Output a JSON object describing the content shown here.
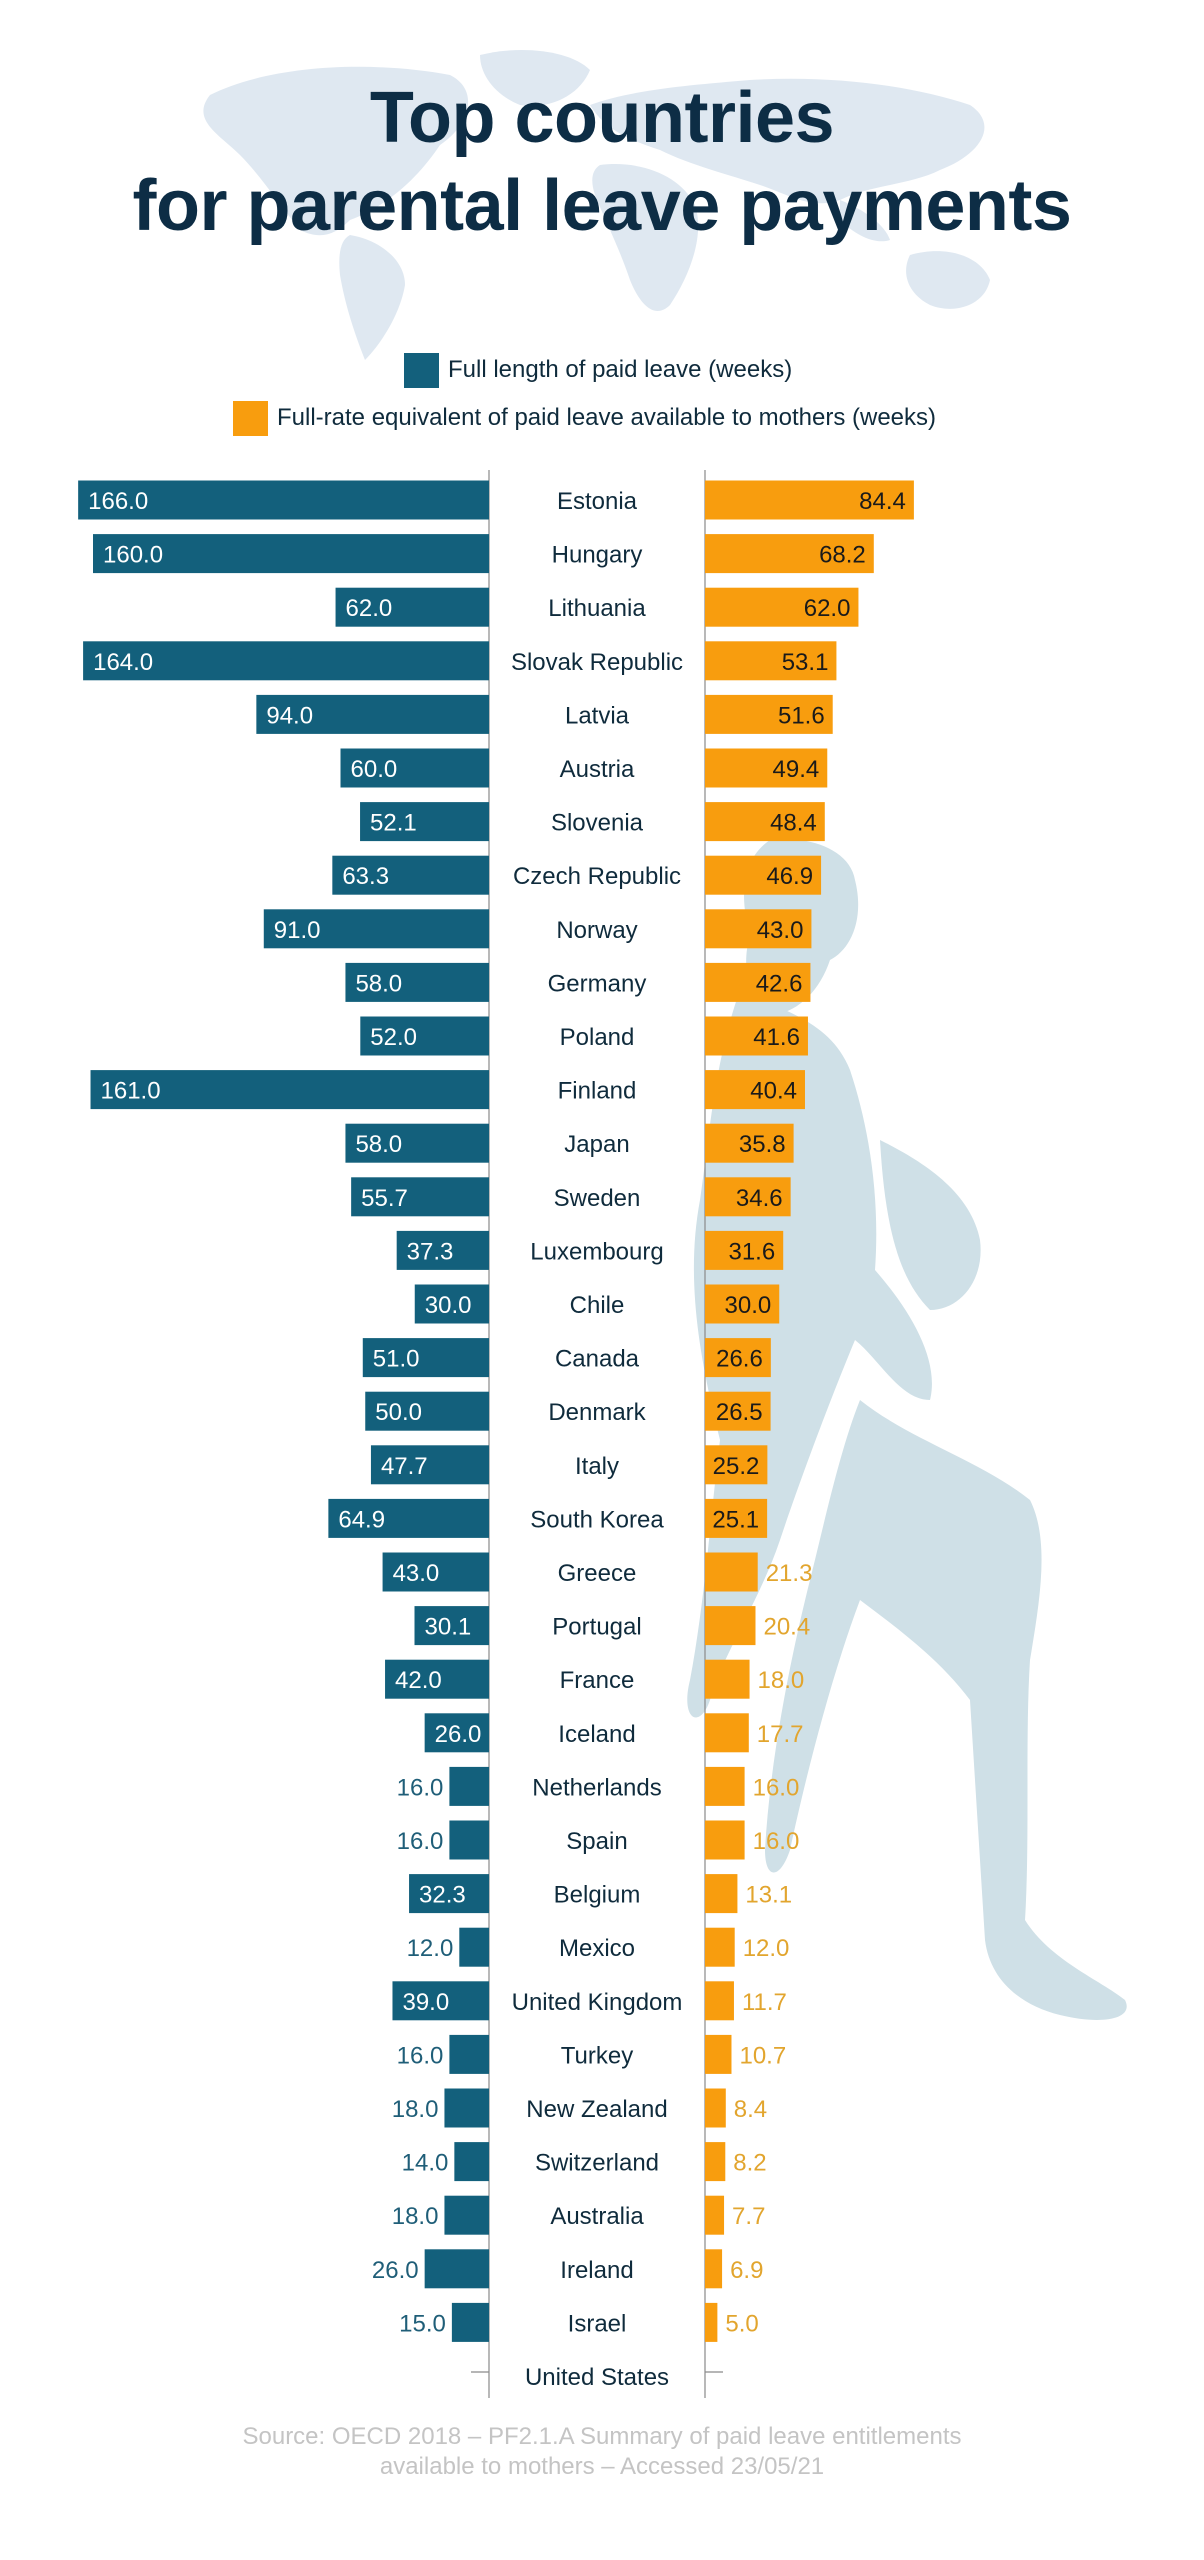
{
  "header": {
    "title_line1": "Top countries",
    "title_line2": "for parental leave payments"
  },
  "legend": [
    {
      "label": "Full length of paid leave (weeks)",
      "color": "#13607c"
    },
    {
      "label": "Full-rate equivalent of paid leave available to mothers (weeks)",
      "color": "#f89d0e"
    }
  ],
  "colors": {
    "blue": "#13607c",
    "orange": "#f89d0e",
    "label_dark": "#0f2b3c",
    "blue_text_outside": "#1f5e78",
    "orange_text_outside": "#e2a52e",
    "background_art": "#cfe0e7"
  },
  "chart_data": {
    "type": "bar",
    "orientation": "horizontal-butterfly",
    "title": "Top countries for parental leave payments",
    "xlabel": "weeks",
    "ylabel": "",
    "xlim": [
      0,
      166
    ],
    "grid": false,
    "legend_position": "top-center",
    "categories": [
      "Estonia",
      "Hungary",
      "Lithuania",
      "Slovak Republic",
      "Latvia",
      "Austria",
      "Slovenia",
      "Czech Republic",
      "Norway",
      "Germany",
      "Poland",
      "Finland",
      "Japan",
      "Sweden",
      "Luxembourg",
      "Chile",
      "Canada",
      "Denmark",
      "Italy",
      "South Korea",
      "Greece",
      "Portugal",
      "France",
      "Iceland",
      "Netherlands",
      "Spain",
      "Belgium",
      "Mexico",
      "United Kingdom",
      "Turkey",
      "New Zealand",
      "Switzerland",
      "Australia",
      "Ireland",
      "Israel",
      "United States"
    ],
    "series": [
      {
        "name": "Full length of paid leave (weeks)",
        "side": "left",
        "values": [
          166.0,
          160.0,
          62.0,
          164.0,
          94.0,
          60.0,
          52.1,
          63.3,
          91.0,
          58.0,
          52.0,
          161.0,
          58.0,
          55.7,
          37.3,
          30.0,
          51.0,
          50.0,
          47.7,
          64.9,
          43.0,
          30.1,
          42.0,
          26.0,
          16.0,
          16.0,
          32.3,
          12.0,
          39.0,
          16.0,
          18.0,
          14.0,
          18.0,
          26.0,
          15.0,
          0
        ],
        "labels": [
          "166.0",
          "160.0",
          "62.0",
          "164.0",
          "94.0",
          "60.0",
          "52.1",
          "63.3",
          "91.0",
          "58.0",
          "52.0",
          "161.0",
          "58.0",
          "55.7",
          "37.3",
          "30.0",
          "51.0",
          "50.0",
          "47.7",
          "64.9",
          "43.0",
          "30.1",
          "42.0",
          "26.0",
          "16.0",
          "16.0",
          "32.3",
          "12.0",
          "39.0",
          "16.0",
          "18.0",
          "14.0",
          "18.0",
          "26.0",
          "15.0",
          ""
        ],
        "label_inside": [
          true,
          true,
          true,
          true,
          true,
          true,
          true,
          true,
          true,
          true,
          true,
          true,
          true,
          true,
          true,
          true,
          true,
          true,
          true,
          true,
          true,
          true,
          true,
          true,
          false,
          false,
          true,
          false,
          true,
          false,
          false,
          false,
          false,
          false,
          false,
          false
        ]
      },
      {
        "name": "Full-rate equivalent of paid leave available to mothers (weeks)",
        "side": "right",
        "values": [
          84.4,
          68.2,
          62.0,
          53.1,
          51.6,
          49.4,
          48.4,
          46.9,
          43.0,
          42.6,
          41.6,
          40.4,
          35.8,
          34.6,
          31.6,
          30.0,
          26.6,
          26.5,
          25.2,
          25.1,
          21.3,
          20.4,
          18.0,
          17.7,
          16.0,
          16.0,
          13.1,
          12.0,
          11.7,
          10.7,
          8.4,
          8.2,
          7.7,
          6.9,
          5.0,
          0
        ],
        "labels": [
          "84.4",
          "68.2",
          "62.0",
          "53.1",
          "51.6",
          "49.4",
          "48.4",
          "46.9",
          "43.0",
          "42.6",
          "41.6",
          "40.4",
          "35.8",
          "34.6",
          "31.6",
          "30.0",
          "26.6",
          "26.5",
          "25.2",
          "25.1",
          "21.3",
          "20.4",
          "18.0",
          "17.7",
          "16.0",
          "16.0",
          "13.1",
          "12.0",
          "11.7",
          "10.7",
          "8.4",
          "8.2",
          "7.7",
          "6.9",
          "5.0",
          ""
        ],
        "label_inside": [
          true,
          true,
          true,
          true,
          true,
          true,
          true,
          true,
          true,
          true,
          true,
          true,
          true,
          true,
          true,
          true,
          true,
          true,
          true,
          true,
          false,
          false,
          false,
          false,
          false,
          false,
          false,
          false,
          false,
          false,
          false,
          false,
          false,
          false,
          false,
          false
        ]
      }
    ]
  },
  "footer": {
    "source_line1": "Source: OECD 2018 – PF2.1.A Summary of paid leave entitlements",
    "source_line2": "available to mothers – Accessed 23/05/21"
  }
}
